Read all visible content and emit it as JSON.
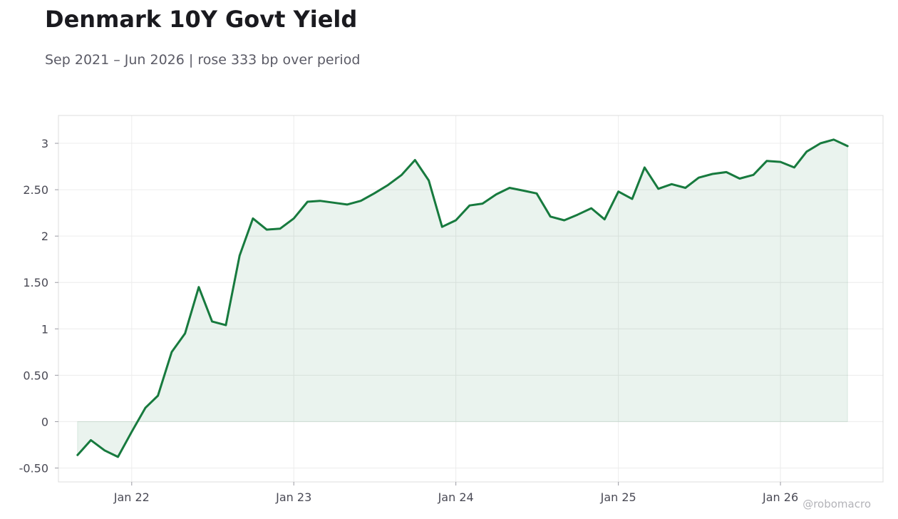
{
  "title": "Denmark 10Y Govt Yield",
  "subtitle": "Sep 2021 – Jun 2026 | rose 333 bp over period",
  "watermark": "@robomacro",
  "colors": {
    "line": "#177a3e",
    "fill": "#177a3e",
    "grid": "#ececec",
    "frame": "#dcdcdc",
    "tick_text": "#4a4a55"
  },
  "chart_data": {
    "type": "area",
    "title": "Denmark 10Y Govt Yield",
    "subtitle": "Sep 2021 – Jun 2026 | rose 333 bp over period",
    "xlabel": "",
    "ylabel": "",
    "grid": true,
    "legend": "none",
    "x_ticks": [
      {
        "date": "2022-01-01",
        "label": "Jan 22"
      },
      {
        "date": "2023-01-01",
        "label": "Jan 23"
      },
      {
        "date": "2024-01-01",
        "label": "Jan 24"
      },
      {
        "date": "2025-01-01",
        "label": "Jan 25"
      },
      {
        "date": "2026-01-01",
        "label": "Jan 26"
      }
    ],
    "y_ticks": [
      {
        "value": -0.5,
        "label": "-0.50"
      },
      {
        "value": 0,
        "label": "0"
      },
      {
        "value": 0.5,
        "label": "0.50"
      },
      {
        "value": 1,
        "label": "1"
      },
      {
        "value": 1.5,
        "label": "1.50"
      },
      {
        "value": 2,
        "label": "2"
      },
      {
        "value": 2.5,
        "label": "2.50"
      },
      {
        "value": 3,
        "label": "3"
      }
    ],
    "xlim": [
      "2021-07-20",
      "2026-08-20"
    ],
    "ylim": [
      -0.65,
      3.3
    ],
    "series": [
      {
        "x": [
          "2021-09-01",
          "2021-10-01",
          "2021-11-01",
          "2021-12-01",
          "2022-01-01",
          "2022-02-01",
          "2022-03-01",
          "2022-04-01",
          "2022-05-01",
          "2022-06-01",
          "2022-07-01",
          "2022-08-01",
          "2022-09-01",
          "2022-10-01",
          "2022-11-01",
          "2022-12-01",
          "2023-01-01",
          "2023-02-01",
          "2023-03-01",
          "2023-04-01",
          "2023-05-01",
          "2023-06-01",
          "2023-07-01",
          "2023-08-01",
          "2023-09-01",
          "2023-10-01",
          "2023-11-01",
          "2023-12-01",
          "2024-01-01",
          "2024-02-01",
          "2024-03-01",
          "2024-04-01",
          "2024-05-01",
          "2024-06-01",
          "2024-07-01",
          "2024-08-01",
          "2024-09-01",
          "2024-10-01",
          "2024-11-01",
          "2024-12-01",
          "2025-01-01",
          "2025-02-01",
          "2025-03-01",
          "2025-04-01",
          "2025-05-01",
          "2025-06-01",
          "2025-07-01",
          "2025-08-01",
          "2025-09-01",
          "2025-10-01",
          "2025-11-01",
          "2025-12-01",
          "2026-01-01",
          "2026-02-01",
          "2026-03-01",
          "2026-04-01",
          "2026-05-01",
          "2026-06-01"
        ],
        "y": [
          -0.36,
          -0.2,
          -0.31,
          -0.38,
          -0.11,
          0.15,
          0.28,
          0.75,
          0.95,
          1.45,
          1.08,
          1.04,
          1.79,
          2.19,
          2.07,
          2.08,
          2.19,
          2.37,
          2.38,
          2.36,
          2.34,
          2.38,
          2.46,
          2.55,
          2.66,
          2.82,
          2.6,
          2.1,
          2.17,
          2.33,
          2.35,
          2.45,
          2.52,
          2.49,
          2.46,
          2.21,
          2.17,
          2.23,
          2.3,
          2.18,
          2.48,
          2.4,
          2.74,
          2.51,
          2.56,
          2.52,
          2.63,
          2.67,
          2.69,
          2.62,
          2.66,
          2.81,
          2.8,
          2.74,
          2.91,
          3.0,
          3.04,
          2.97
        ]
      }
    ]
  }
}
